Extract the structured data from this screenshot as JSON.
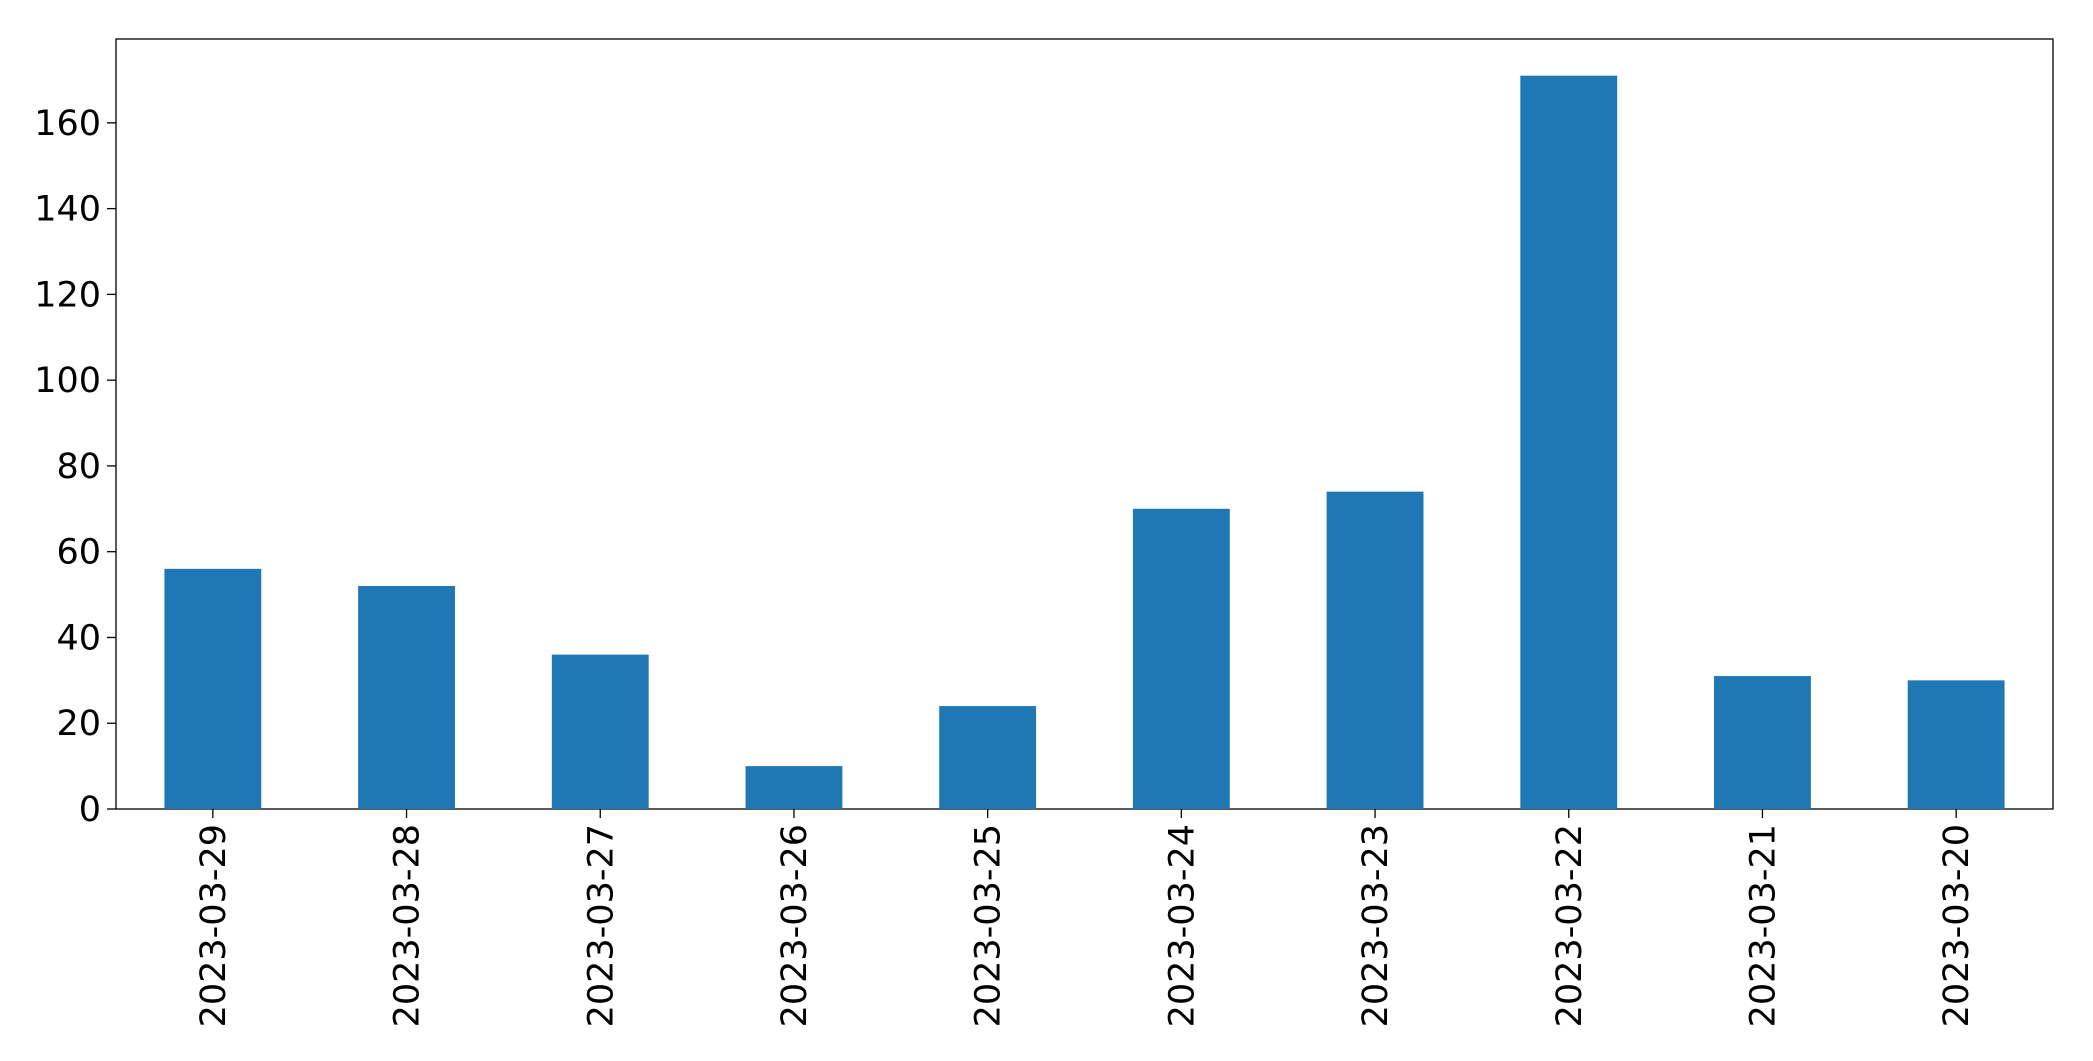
{
  "chart_data": {
    "type": "bar",
    "categories": [
      "2023-03-29",
      "2023-03-28",
      "2023-03-27",
      "2023-03-26",
      "2023-03-25",
      "2023-03-24",
      "2023-03-23",
      "2023-03-22",
      "2023-03-21",
      "2023-03-20"
    ],
    "values": [
      56,
      52,
      36,
      10,
      24,
      70,
      74,
      171,
      31,
      30
    ],
    "color": "#1f77b4",
    "ylim": [
      0,
      179.55
    ],
    "yticks": [
      0,
      20,
      40,
      60,
      80,
      100,
      120,
      140,
      160
    ],
    "grid": false
  }
}
